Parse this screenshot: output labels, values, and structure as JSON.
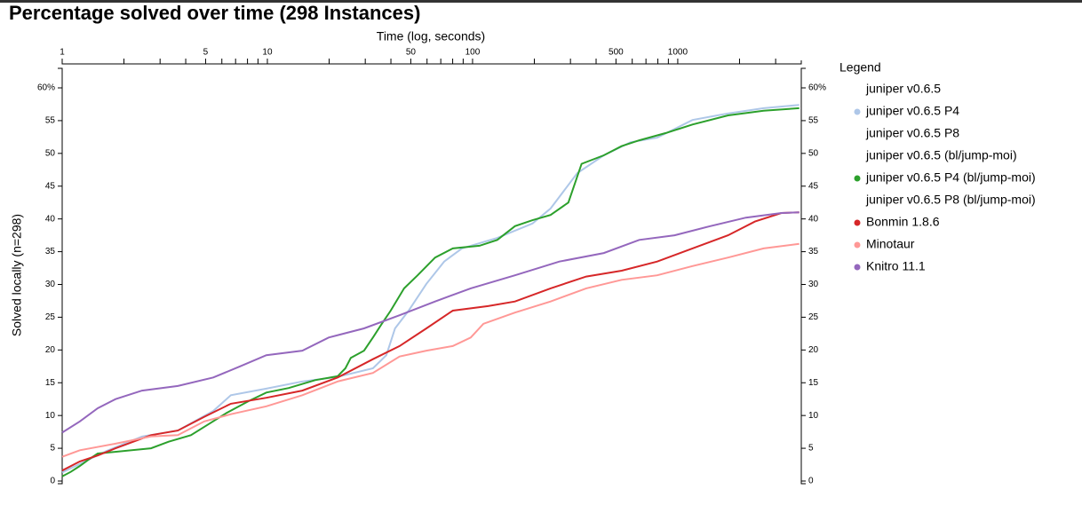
{
  "chart_data": {
    "type": "line",
    "title": "Percentage solved over time (298 Instances)",
    "x_label": "Time (log, seconds)",
    "y_label": "Solved locally (n=298)",
    "legend_title": "Legend",
    "xscale": "log",
    "xlim": [
      1,
      4000
    ],
    "xticks": [
      1,
      5,
      10,
      50,
      100,
      500,
      1000
    ],
    "xminorticks": [
      2,
      3,
      4,
      6,
      7,
      8,
      9,
      20,
      30,
      40,
      60,
      70,
      80,
      90,
      200,
      300,
      400,
      600,
      700,
      800,
      900,
      2000,
      3000
    ],
    "ylim": [
      0,
      60
    ],
    "yticks": [
      0,
      5,
      10,
      15,
      20,
      25,
      30,
      35,
      40,
      45,
      50,
      55,
      {
        "value": 60,
        "label": "60%"
      }
    ],
    "legend": "right",
    "series": [
      {
        "name": "juniper v0.6.5",
        "color": "#ffffff",
        "x": [],
        "values": []
      },
      {
        "name": "juniper v0.6.5 P4",
        "color": "#aec7e8",
        "x": [
          1,
          1.65,
          2.45,
          3.66,
          5.45,
          6.64,
          9.88,
          14.8,
          22,
          32.7,
          38,
          41.9,
          48.8,
          59.6,
          72.7,
          88.8,
          132,
          196,
          240,
          324,
          436,
          588,
          794,
          1180,
          1760,
          2620,
          3910
        ],
        "values": [
          1.3,
          4.6,
          6.8,
          7.7,
          10.7,
          13.1,
          14.1,
          15.2,
          15.9,
          17.2,
          19.2,
          23.3,
          26.0,
          30.1,
          33.5,
          35.5,
          37.1,
          39.3,
          41.6,
          47.0,
          49.7,
          51.7,
          52.4,
          55.1,
          56.1,
          56.9,
          57.4
        ]
      },
      {
        "name": "juniper v0.6.5 P8",
        "color": "#ffffff",
        "x": [],
        "values": []
      },
      {
        "name": "juniper v0.6.5 (bl/jump-moi)",
        "color": "#ffffff",
        "x": [],
        "values": []
      },
      {
        "name": "juniper v0.6.5 P4 (bl/jump-moi)",
        "color": "#2ca02c",
        "x": [
          1,
          1.1,
          1.22,
          1.35,
          1.49,
          2.71,
          3.3,
          4.24,
          5.18,
          6.33,
          8.11,
          9.88,
          12.7,
          17.1,
          22,
          24,
          25.5,
          29.6,
          32.7,
          36.1,
          39.9,
          46.4,
          54,
          65.7,
          80.1,
          108,
          132,
          161,
          196,
          240,
          293,
          340,
          436,
          532,
          649,
          875,
          1180,
          1760,
          2620,
          3910
        ],
        "values": [
          0.7,
          1.4,
          2.3,
          3.3,
          4.2,
          5.0,
          6.0,
          7.0,
          8.7,
          10.4,
          12.2,
          13.5,
          14.2,
          15.4,
          16.0,
          17.2,
          18.8,
          19.9,
          21.9,
          24.0,
          26.0,
          29.4,
          31.4,
          34.1,
          35.5,
          35.9,
          36.8,
          38.9,
          39.8,
          40.6,
          42.5,
          48.4,
          49.7,
          51.1,
          52.0,
          53.1,
          54.4,
          55.8,
          56.5,
          56.9
        ]
      },
      {
        "name": "juniper v0.6.5 P8 (bl/jump-moi)",
        "color": "#ffffff",
        "x": [],
        "values": []
      },
      {
        "name": "Bonmin 1.8.6",
        "color": "#d62728",
        "x": [
          1,
          1.22,
          1.49,
          1.82,
          2.71,
          3.66,
          4.93,
          6.64,
          9.88,
          14.8,
          22,
          32.7,
          44.1,
          59.6,
          80.1,
          119,
          161,
          240,
          358,
          533,
          794,
          1180,
          1760,
          2380,
          3200,
          3910
        ],
        "values": [
          1.6,
          3.0,
          3.9,
          5.0,
          7.0,
          7.7,
          9.8,
          11.8,
          12.7,
          13.8,
          15.8,
          18.6,
          20.6,
          23.3,
          26.0,
          26.7,
          27.4,
          29.4,
          31.2,
          32.1,
          33.5,
          35.5,
          37.5,
          39.6,
          40.9,
          41.0
        ]
      },
      {
        "name": "Minotaur",
        "color": "#ff9896",
        "x": [
          1,
          1.22,
          1.82,
          2.71,
          3.66,
          4.93,
          6.64,
          9.88,
          14.8,
          22,
          32.7,
          44.1,
          59.6,
          80.1,
          98,
          113,
          161,
          240,
          358,
          533,
          794,
          1180,
          1760,
          2620,
          3910
        ],
        "values": [
          3.7,
          4.7,
          5.7,
          6.8,
          7.0,
          9.1,
          10.2,
          11.4,
          13.1,
          15.2,
          16.5,
          19.0,
          19.9,
          20.6,
          21.9,
          24.0,
          25.7,
          27.4,
          29.4,
          30.7,
          31.4,
          32.8,
          34.1,
          35.5,
          36.2
        ]
      },
      {
        "name": "Knitro 11.1",
        "color": "#9467bd",
        "x": [
          1,
          1.22,
          1.49,
          1.82,
          2.45,
          3.66,
          5.45,
          7.36,
          9.88,
          14.8,
          19.9,
          29.6,
          44.1,
          65.7,
          98,
          161,
          265,
          436,
          649,
          965,
          1440,
          2150,
          3200,
          3910
        ],
        "values": [
          7.4,
          9.1,
          11.1,
          12.5,
          13.8,
          14.5,
          15.8,
          17.5,
          19.2,
          19.9,
          21.9,
          23.3,
          25.3,
          27.4,
          29.4,
          31.4,
          33.5,
          34.8,
          36.8,
          37.5,
          38.9,
          40.2,
          40.9,
          41.0
        ]
      }
    ]
  }
}
